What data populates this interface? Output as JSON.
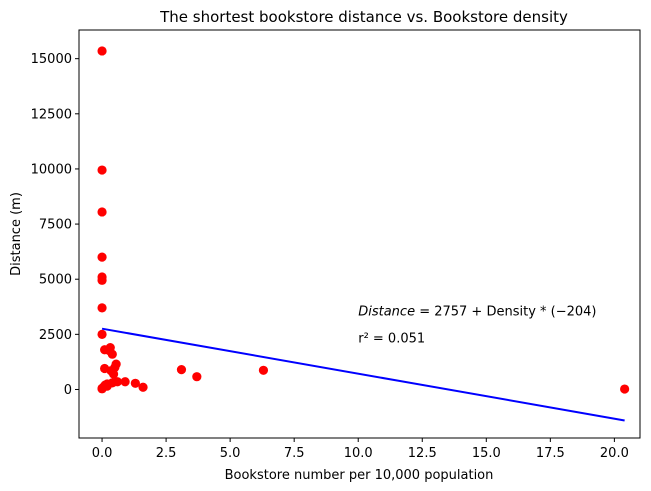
{
  "chart_data": {
    "type": "scatter",
    "title": "The shortest bookstore distance vs. Bookstore density",
    "xlabel": "Bookstore number per 10,000 population",
    "ylabel": "Distance (m)",
    "xlim": [
      -0.9,
      21.0
    ],
    "ylim": [
      -2200,
      16300
    ],
    "x_ticks": [
      0.0,
      2.5,
      5.0,
      7.5,
      10.0,
      12.5,
      15.0,
      17.5,
      20.0
    ],
    "x_tick_labels": [
      "0.0",
      "2.5",
      "5.0",
      "7.5",
      "10.0",
      "12.5",
      "15.0",
      "17.5",
      "20.0"
    ],
    "y_ticks": [
      0,
      2500,
      5000,
      7500,
      10000,
      12500,
      15000
    ],
    "y_tick_labels": [
      "0",
      "2500",
      "5000",
      "7500",
      "10000",
      "12500",
      "15000"
    ],
    "grid": false,
    "points": {
      "color": "#ff0000",
      "x": [
        0.0,
        0.0,
        0.0,
        0.0,
        0.0,
        0.0,
        0.0,
        0.0,
        0.0,
        0.05,
        0.1,
        0.1,
        0.12,
        0.2,
        0.3,
        0.32,
        0.35,
        0.4,
        0.45,
        0.5,
        0.55,
        0.6,
        0.9,
        1.3,
        1.6,
        3.1,
        3.7,
        6.3,
        20.4,
        0.0,
        0.2,
        0.4
      ],
      "y": [
        15350,
        9950,
        8050,
        6000,
        5100,
        4950,
        3700,
        2500,
        30,
        100,
        1800,
        950,
        200,
        150,
        1750,
        1900,
        850,
        1600,
        700,
        1000,
        1150,
        350,
        350,
        280,
        100,
        900,
        580,
        870,
        20,
        50,
        250,
        300
      ]
    },
    "fit_line": {
      "color": "#0000ff",
      "x": [
        0.0,
        20.4
      ],
      "y": [
        2757,
        -1405
      ]
    },
    "annotation": {
      "equation_lead": "Distance",
      "equation_rest": " = 2757 + Density * (−204)",
      "r2_label": "r² = 0.051",
      "x": 10.0,
      "y_line1": 3000,
      "y_line2": 2000
    }
  }
}
